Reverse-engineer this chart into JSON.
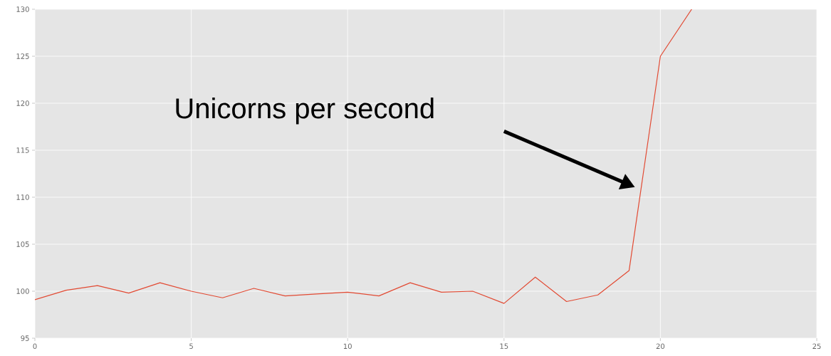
{
  "chart_data": {
    "type": "line",
    "x": [
      0,
      1,
      2,
      3,
      4,
      5,
      6,
      7,
      8,
      9,
      10,
      11,
      12,
      13,
      14,
      15,
      16,
      17,
      18,
      19,
      20,
      21
    ],
    "series": [
      {
        "color": "#e24a33",
        "values": [
          99.1,
          100.1,
          100.6,
          99.8,
          100.9,
          100.0,
          99.3,
          100.3,
          99.5,
          99.7,
          99.9,
          99.5,
          100.9,
          99.9,
          100.0,
          98.7,
          101.5,
          98.9,
          99.6,
          102.2,
          125.0,
          130.0
        ]
      }
    ],
    "xlim": [
      0,
      25
    ],
    "ylim": [
      95,
      130
    ],
    "xticks": [
      0,
      5,
      10,
      15,
      20,
      25
    ],
    "yticks": [
      95,
      100,
      105,
      110,
      115,
      120,
      125,
      130
    ],
    "grid": true,
    "marker": "none",
    "line_style": "solid",
    "annotations": [
      "Unicorns per second"
    ]
  }
}
